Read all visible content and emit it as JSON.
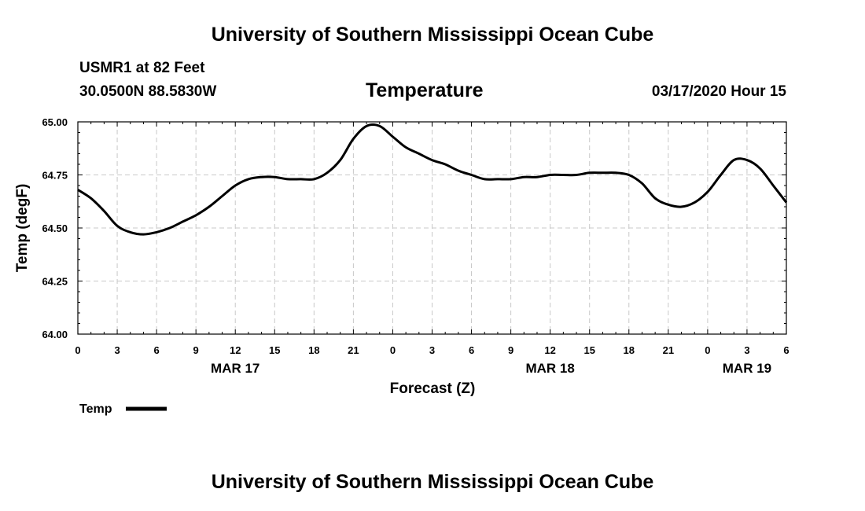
{
  "header": {
    "org_title": "University of Southern Mississippi Ocean Cube",
    "station": "USMR1 at 82 Feet",
    "coords": "30.0500N 88.5830W",
    "plot_title": "Temperature",
    "datetime": "03/17/2020 Hour 15"
  },
  "footer": {
    "org_title": "University of Southern Mississippi Ocean Cube"
  },
  "chart_data": {
    "type": "line",
    "title": "Temperature",
    "xlabel": "Forecast (Z)",
    "ylabel": "Temp (degF)",
    "ylim": [
      64.0,
      65.0
    ],
    "xlim_hours": [
      0,
      54
    ],
    "y_ticks": [
      "64.00",
      "64.25",
      "64.50",
      "64.75",
      "65.00"
    ],
    "x_tick_labels": [
      "0",
      "3",
      "6",
      "9",
      "12",
      "15",
      "18",
      "21",
      "0",
      "3",
      "6",
      "9",
      "12",
      "15",
      "18",
      "21",
      "0",
      "3",
      "6"
    ],
    "date_labels": [
      {
        "label": "MAR 17",
        "hour": 12
      },
      {
        "label": "MAR 18",
        "hour": 36
      },
      {
        "label": "MAR 19",
        "hour": 51
      }
    ],
    "grid": true,
    "legend": {
      "position": "bottom-left",
      "label": "Temp"
    },
    "series": [
      {
        "name": "Temp",
        "color": "#000000",
        "x": [
          0,
          1,
          2,
          3,
          4,
          5,
          6,
          7,
          8,
          9,
          10,
          11,
          12,
          13,
          14,
          15,
          16,
          17,
          18,
          19,
          20,
          21,
          22,
          23,
          24,
          25,
          26,
          27,
          28,
          29,
          30,
          31,
          32,
          33,
          34,
          35,
          36,
          37,
          38,
          39,
          40,
          41,
          42,
          43,
          44,
          45,
          46,
          47,
          48,
          49,
          50,
          51,
          52,
          53,
          54
        ],
        "values": [
          64.68,
          64.64,
          64.58,
          64.51,
          64.48,
          64.47,
          64.48,
          64.5,
          64.53,
          64.56,
          64.6,
          64.65,
          64.7,
          64.73,
          64.74,
          64.74,
          64.73,
          64.73,
          64.73,
          64.76,
          64.82,
          64.92,
          64.98,
          64.98,
          64.93,
          64.88,
          64.85,
          64.82,
          64.8,
          64.77,
          64.75,
          64.73,
          64.73,
          64.73,
          64.74,
          64.74,
          64.75,
          64.75,
          64.75,
          64.76,
          64.76,
          64.76,
          64.75,
          64.71,
          64.64,
          64.61,
          64.6,
          64.62,
          64.67,
          64.75,
          64.82,
          64.82,
          64.78,
          64.7,
          64.62
        ]
      }
    ]
  }
}
